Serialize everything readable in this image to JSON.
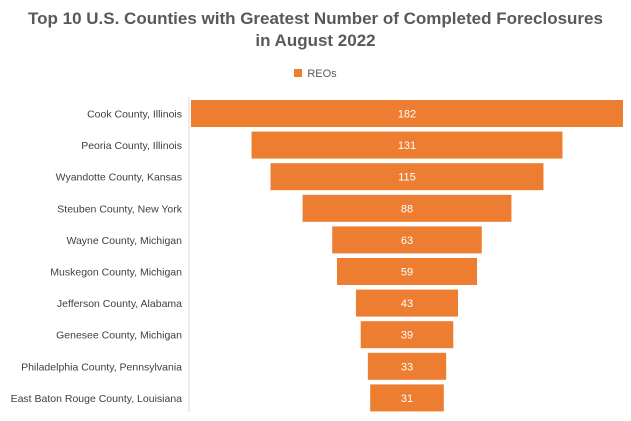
{
  "chart_data": {
    "type": "bar",
    "subtype": "funnel",
    "title_line1": "Top 10 U.S. Counties with Greatest Number of Completed Foreclosures",
    "title_line2": "in August 2022",
    "legend": {
      "entries": [
        "REOs"
      ],
      "placement": "top"
    },
    "series": [
      {
        "name": "REOs",
        "color": "#ED7D31",
        "values": [
          182,
          131,
          115,
          88,
          63,
          59,
          43,
          39,
          33,
          31
        ]
      }
    ],
    "categories": [
      "Cook County, Illinois",
      "Peoria County, Illinois",
      "Wyandotte County, Kansas",
      "Steuben County, New York",
      "Wayne County, Michigan",
      "Muskegon County, Michigan",
      "Jefferson County, Alabama",
      "Genesee County, Michigan",
      "Philadelphia County, Pennsylvania",
      "East Baton Rouge County, Louisiana"
    ],
    "data_labels": true,
    "grid": false
  }
}
